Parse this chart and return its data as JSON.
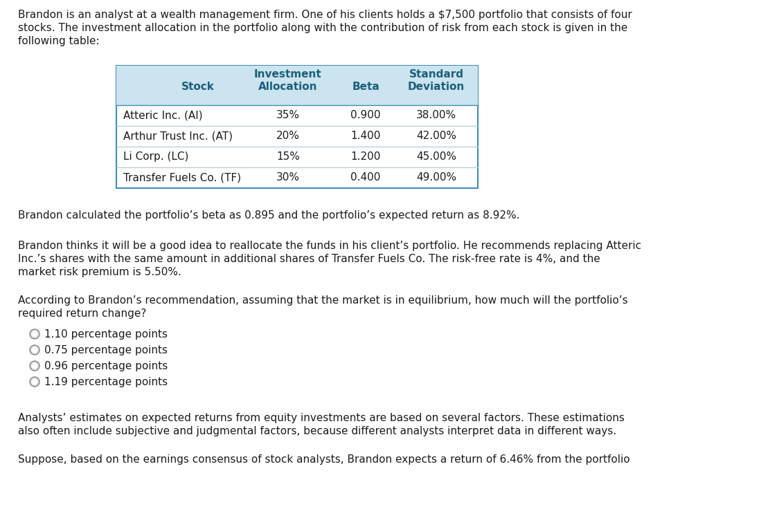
{
  "intro_text_lines": [
    "Brandon is an analyst at a wealth management firm. One of his clients holds a $7,500 portfolio that consists of four",
    "stocks. The investment allocation in the portfolio along with the contribution of risk from each stock is given in the",
    "following table:"
  ],
  "table": {
    "rows": [
      [
        "Atteric Inc. (AI)",
        "35%",
        "0.900",
        "38.00%"
      ],
      [
        "Arthur Trust Inc. (AT)",
        "20%",
        "1.400",
        "42.00%"
      ],
      [
        "Li Corp. (LC)",
        "15%",
        "1.200",
        "45.00%"
      ],
      [
        "Transfer Fuels Co. (TF)",
        "30%",
        "0.400",
        "49.00%"
      ]
    ],
    "header_bg": "#cce3f0",
    "border_color": "#3a8fbd",
    "header_text_color": "#1a5f7a",
    "body_text_color": "#1c1c1c",
    "divider_color": "#b0c8d8"
  },
  "para1": "Brandon calculated the portfolio’s beta as 0.895 and the portfolio’s expected return as 8.92%.",
  "para2_lines": [
    "Brandon thinks it will be a good idea to reallocate the funds in his client’s portfolio. He recommends replacing Atteric",
    "Inc.’s shares with the same amount in additional shares of Transfer Fuels Co. The risk-free rate is 4%, and the",
    "market risk premium is 5.50%."
  ],
  "question_lines": [
    "According to Brandon’s recommendation, assuming that the market is in equilibrium, how much will the portfolio’s",
    "required return change?"
  ],
  "options": [
    "1.10 percentage points",
    "0.75 percentage points",
    "0.96 percentage points",
    "1.19 percentage points"
  ],
  "para3_lines": [
    "Analysts’ estimates on expected returns from equity investments are based on several factors. These estimations",
    "also often include subjective and judgmental factors, because different analysts interpret data in different ways."
  ],
  "para4": "Suppose, based on the earnings consensus of stock analysts, Brandon expects a return of 6.46% from the portfolio",
  "bg_color": "#ffffff",
  "text_color": "#1c1c1c",
  "font_size": 11.0,
  "font_family": "DejaVu Sans"
}
